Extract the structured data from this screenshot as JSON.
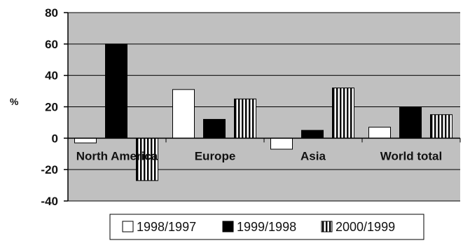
{
  "chart_data": {
    "type": "bar",
    "title": "",
    "xlabel": "",
    "ylabel": "%",
    "ylim": [
      -40,
      80
    ],
    "yticks": [
      "80",
      "60",
      "40",
      "20",
      "0",
      "-20",
      "-40"
    ],
    "grid": true,
    "legend_position": "bottom",
    "categories": [
      "North America",
      "Europe",
      "Asia",
      "World total"
    ],
    "series": [
      {
        "name": "1998/1997",
        "values": [
          -3,
          31,
          -7,
          7
        ],
        "fill": "white"
      },
      {
        "name": "1999/1998",
        "values": [
          60,
          12,
          5,
          20
        ],
        "fill": "black"
      },
      {
        "name": "2000/1999",
        "values": [
          -27,
          25,
          32,
          15
        ],
        "fill": "vertical-stripes"
      }
    ]
  },
  "colors": {
    "plot_background": "#c0c0c0",
    "gridline": "#000000",
    "bar_white": "#ffffff",
    "bar_black": "#000000"
  }
}
